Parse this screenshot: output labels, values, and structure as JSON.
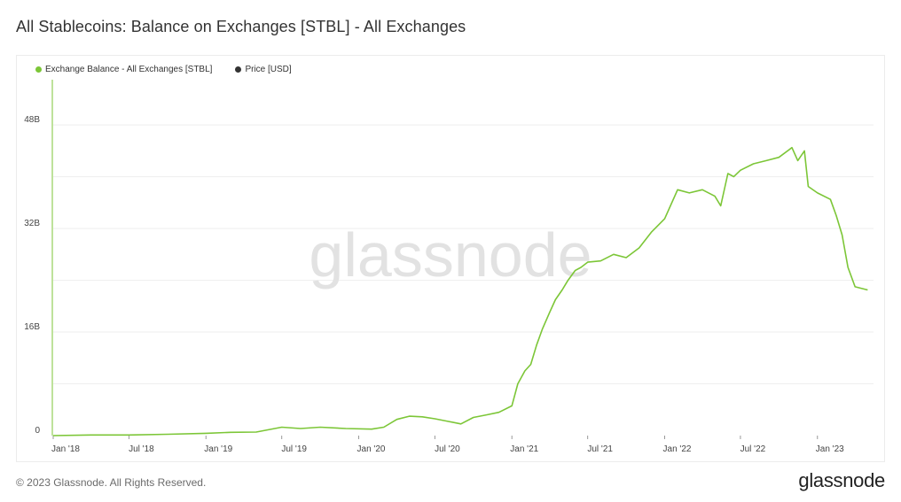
{
  "header": {
    "title": "All Stablecoins: Balance on Exchanges [STBL] - All Exchanges"
  },
  "legend": [
    {
      "label": "Exchange Balance - All Exchanges [STBL]",
      "color": "#7cc637"
    },
    {
      "label": "Price [USD]",
      "color": "#333333"
    }
  ],
  "watermark": "glassnode",
  "footer": {
    "copyright": "© 2023 Glassnode. All Rights Reserved.",
    "brand": "glassnode"
  },
  "chart_data": {
    "type": "line",
    "x_tick_labels": [
      "Jan '18",
      "Jul '18",
      "Jan '19",
      "Jul '19",
      "Jan '20",
      "Jul '20",
      "Jan '21",
      "Jul '21",
      "Jan '22",
      "Jul '22",
      "Jan '23"
    ],
    "y_tick_labels": [
      "0",
      "16B",
      "32B",
      "48B"
    ],
    "ylim": [
      0,
      55
    ],
    "xlim": [
      "2018-01-01",
      "2023-05-15"
    ],
    "grid": true,
    "series": [
      {
        "name": "Exchange Balance - All Exchanges [STBL]",
        "color": "#7cc637",
        "points": [
          [
            "2018-01-01",
            0.0
          ],
          [
            "2018-04-01",
            0.1
          ],
          [
            "2018-07-01",
            0.1
          ],
          [
            "2018-10-01",
            0.2
          ],
          [
            "2019-01-01",
            0.35
          ],
          [
            "2019-03-01",
            0.5
          ],
          [
            "2019-05-01",
            0.55
          ],
          [
            "2019-07-01",
            1.3
          ],
          [
            "2019-08-15",
            1.1
          ],
          [
            "2019-10-01",
            1.3
          ],
          [
            "2019-12-01",
            1.1
          ],
          [
            "2020-02-01",
            1.0
          ],
          [
            "2020-03-01",
            1.3
          ],
          [
            "2020-04-01",
            2.5
          ],
          [
            "2020-05-01",
            3.0
          ],
          [
            "2020-06-01",
            2.9
          ],
          [
            "2020-07-01",
            2.6
          ],
          [
            "2020-08-01",
            2.2
          ],
          [
            "2020-09-01",
            1.8
          ],
          [
            "2020-10-01",
            2.8
          ],
          [
            "2020-11-01",
            3.2
          ],
          [
            "2020-12-01",
            3.6
          ],
          [
            "2021-01-01",
            4.6
          ],
          [
            "2021-01-15",
            8.0
          ],
          [
            "2021-02-01",
            10.0
          ],
          [
            "2021-02-15",
            11.0
          ],
          [
            "2021-03-01",
            14.0
          ],
          [
            "2021-03-15",
            16.5
          ],
          [
            "2021-04-01",
            19.0
          ],
          [
            "2021-04-15",
            21.0
          ],
          [
            "2021-05-01",
            22.5
          ],
          [
            "2021-05-15",
            24.0
          ],
          [
            "2021-06-01",
            25.5
          ],
          [
            "2021-06-15",
            26.0
          ],
          [
            "2021-07-01",
            26.8
          ],
          [
            "2021-08-01",
            27.0
          ],
          [
            "2021-09-01",
            28.0
          ],
          [
            "2021-10-01",
            27.5
          ],
          [
            "2021-11-01",
            29.0
          ],
          [
            "2021-12-01",
            31.5
          ],
          [
            "2022-01-01",
            33.5
          ],
          [
            "2022-02-01",
            38.0
          ],
          [
            "2022-03-01",
            37.5
          ],
          [
            "2022-04-01",
            38.0
          ],
          [
            "2022-05-01",
            37.0
          ],
          [
            "2022-05-15",
            35.5
          ],
          [
            "2022-06-01",
            40.5
          ],
          [
            "2022-06-15",
            40.0
          ],
          [
            "2022-07-01",
            41.0
          ],
          [
            "2022-08-01",
            42.0
          ],
          [
            "2022-09-01",
            42.5
          ],
          [
            "2022-10-01",
            43.0
          ],
          [
            "2022-11-01",
            44.5
          ],
          [
            "2022-11-15",
            42.5
          ],
          [
            "2022-12-01",
            44.0
          ],
          [
            "2022-12-10",
            38.5
          ],
          [
            "2023-01-01",
            37.5
          ],
          [
            "2023-02-01",
            36.5
          ],
          [
            "2023-02-15",
            34.0
          ],
          [
            "2023-03-01",
            31.0
          ],
          [
            "2023-03-15",
            26.0
          ],
          [
            "2023-04-01",
            23.0
          ],
          [
            "2023-05-01",
            22.5
          ]
        ]
      }
    ]
  }
}
